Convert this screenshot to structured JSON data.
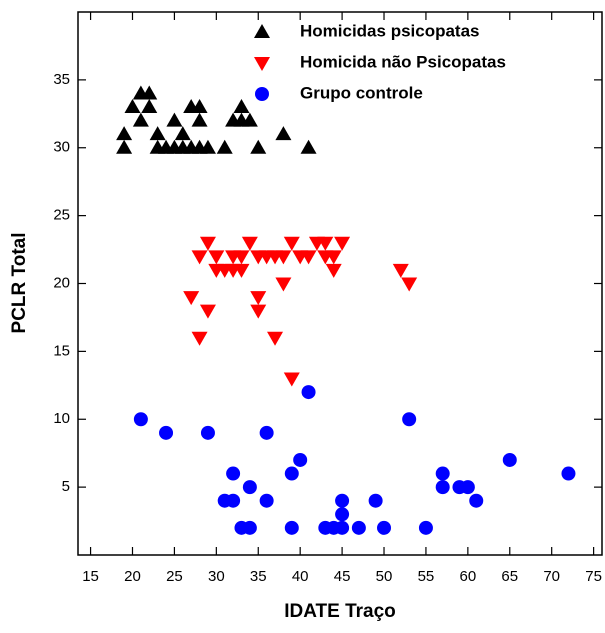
{
  "chart_data": {
    "type": "scatter",
    "x_label": "IDATE Traço",
    "y_label": "PCLR Total",
    "xlim": [
      13.5,
      76
    ],
    "ylim": [
      0,
      40
    ],
    "xticks": [
      15,
      20,
      25,
      30,
      35,
      40,
      45,
      50,
      55,
      60,
      65,
      70,
      75
    ],
    "yticks": [
      5,
      10,
      15,
      20,
      25,
      30,
      35
    ],
    "legend": "upper right",
    "series": [
      {
        "name": "Homicidas psicopatas",
        "color": "#000000",
        "marker": "triangle-up",
        "x": [
          19,
          19,
          20,
          21,
          22,
          21,
          22,
          23,
          23,
          24,
          25,
          25,
          26,
          26,
          27,
          27,
          28,
          28,
          28,
          29,
          31,
          32,
          33,
          33,
          34,
          35,
          38,
          41
        ],
        "values": [
          30,
          31,
          33,
          34,
          34,
          32,
          33,
          31,
          30,
          30,
          30,
          32,
          31,
          30,
          33,
          30,
          33,
          32,
          30,
          30,
          30,
          32,
          32,
          33,
          32,
          30,
          31,
          30
        ]
      },
      {
        "name": "Homicida não Psicopatas",
        "color": "#ff0000",
        "marker": "triangle-down",
        "x": [
          27,
          28,
          28,
          29,
          29,
          30,
          30,
          31,
          32,
          32,
          33,
          33,
          34,
          35,
          35,
          35,
          36,
          37,
          37,
          38,
          38,
          39,
          39,
          40,
          41,
          42,
          43,
          43,
          44,
          44,
          45,
          52,
          53
        ],
        "values": [
          19,
          16,
          22,
          23,
          18,
          22,
          21,
          21,
          21,
          22,
          21,
          22,
          23,
          22,
          19,
          18,
          22,
          22,
          16,
          20,
          22,
          23,
          13,
          22,
          22,
          23,
          22,
          23,
          22,
          21,
          23,
          21,
          20
        ]
      },
      {
        "name": "Grupo controle",
        "color": "#0000ff",
        "marker": "circle",
        "x": [
          21,
          24,
          29,
          31,
          32,
          32,
          33,
          34,
          34,
          36,
          36,
          39,
          39,
          40,
          41,
          43,
          44,
          45,
          45,
          45,
          47,
          49,
          50,
          53,
          55,
          57,
          57,
          59,
          60,
          61,
          65,
          72
        ],
        "values": [
          10,
          9,
          9,
          4,
          6,
          4,
          2,
          5,
          2,
          9,
          4,
          6,
          2,
          7,
          12,
          2,
          2,
          4,
          3,
          2,
          2,
          4,
          2,
          10,
          2,
          6,
          5,
          5,
          5,
          4,
          7,
          6
        ]
      }
    ]
  }
}
